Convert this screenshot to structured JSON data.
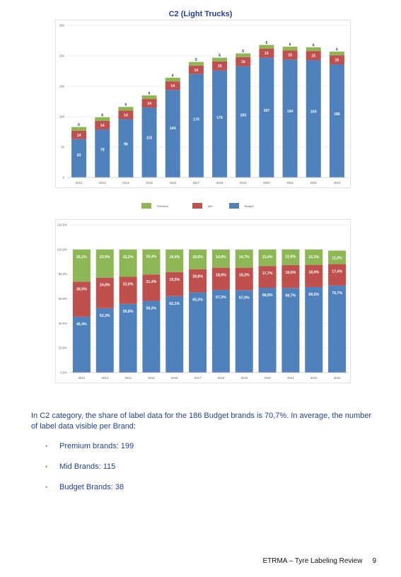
{
  "title": "C2 (Light Trucks)",
  "colors": {
    "premium": "#8db654",
    "mid": "#c0504d",
    "budget": "#4f81bd",
    "title": "#1f3fa0",
    "bullet": "#d9832f"
  },
  "legend": {
    "premium": "Premium",
    "mid": "Mid",
    "budget": "Budget"
  },
  "chart_data": [
    {
      "type": "bar",
      "stacked": true,
      "title": "C2 (Light Trucks)",
      "categories": [
        "2012",
        "2013",
        "2014",
        "2015",
        "2016",
        "2017",
        "2018",
        "2019",
        "2020",
        "2021",
        "2022",
        "2023"
      ],
      "series": [
        {
          "name": "Budget",
          "values": [
            63,
            79,
            96,
            115,
            144,
            170,
            176,
            183,
            197,
            194,
            193,
            186
          ]
        },
        {
          "name": "Mid",
          "values": [
            14,
            14,
            14,
            14,
            14,
            14,
            15,
            15,
            15,
            15,
            15,
            15
          ]
        },
        {
          "name": "Premium",
          "values": [
            6,
            6,
            6,
            6,
            6,
            6,
            6,
            6,
            6,
            6,
            6,
            6
          ]
        }
      ],
      "ylim": [
        0,
        250
      ],
      "yticks": [
        "0",
        "50",
        "100",
        "150",
        "200",
        "250"
      ],
      "grid": true,
      "legend_position": "bottom"
    },
    {
      "type": "bar",
      "stacked": true,
      "percent": true,
      "categories": [
        "2012",
        "2013",
        "2014",
        "2015",
        "2016",
        "2017",
        "2018",
        "2019",
        "2020",
        "2021",
        "2022",
        "2023"
      ],
      "series": [
        {
          "name": "Budget",
          "values": [
            45.4,
            52.3,
            55.8,
            58.3,
            62.1,
            65.2,
            67.2,
            67.0,
            68.9,
            68.7,
            69.5,
            70.7
          ],
          "labels": [
            "45,4%",
            "52,3%",
            "55,8%",
            "58,3%",
            "62,1%",
            "65,2%",
            "67,2%",
            "67,0%",
            "68,9%",
            "68,7%",
            "69,5%",
            "70,7%"
          ]
        },
        {
          "name": "Mid",
          "values": [
            28.5,
            24.8,
            22.0,
            21.4,
            19.5,
            18.8,
            18.0,
            18.2,
            17.7,
            18.6,
            18.0,
            17.4
          ],
          "labels": [
            "28,5%",
            "24,8%",
            "22,0%",
            "21,4%",
            "19,5%",
            "18,8%",
            "18,0%",
            "18,2%",
            "17,7%",
            "18,6%",
            "18,0%",
            "17,4%"
          ]
        },
        {
          "name": "Premium",
          "values": [
            26.1,
            22.9,
            22.2,
            20.4,
            18.4,
            16.0,
            14.8,
            14.7,
            13.4,
            12.8,
            12.5,
            11.0
          ],
          "labels": [
            "26,1%",
            "22,9%",
            "22,2%",
            "20,4%",
            "18,4%",
            "16,0%",
            "14,8%",
            "14,7%",
            "13,4%",
            "12,8%",
            "12,5%",
            "11,0%"
          ]
        }
      ],
      "ylim": [
        0,
        120
      ],
      "yticks": [
        "0,0%",
        "20,0%",
        "40,0%",
        "60,0%",
        "80,0%",
        "100,0%",
        "120,0%"
      ],
      "grid": true
    }
  ],
  "body": {
    "paragraph": "In C2 category, the share of label data for the 186 Budget brands is 70,7%. In average, the number of label data visible per Brand:",
    "bullets": [
      "Premium brands: 199",
      "Mid Brands: 115",
      "Budget Brands: 38"
    ]
  },
  "footer": {
    "text": "ETRMA – Tyre Labeling Review",
    "page": "9"
  }
}
